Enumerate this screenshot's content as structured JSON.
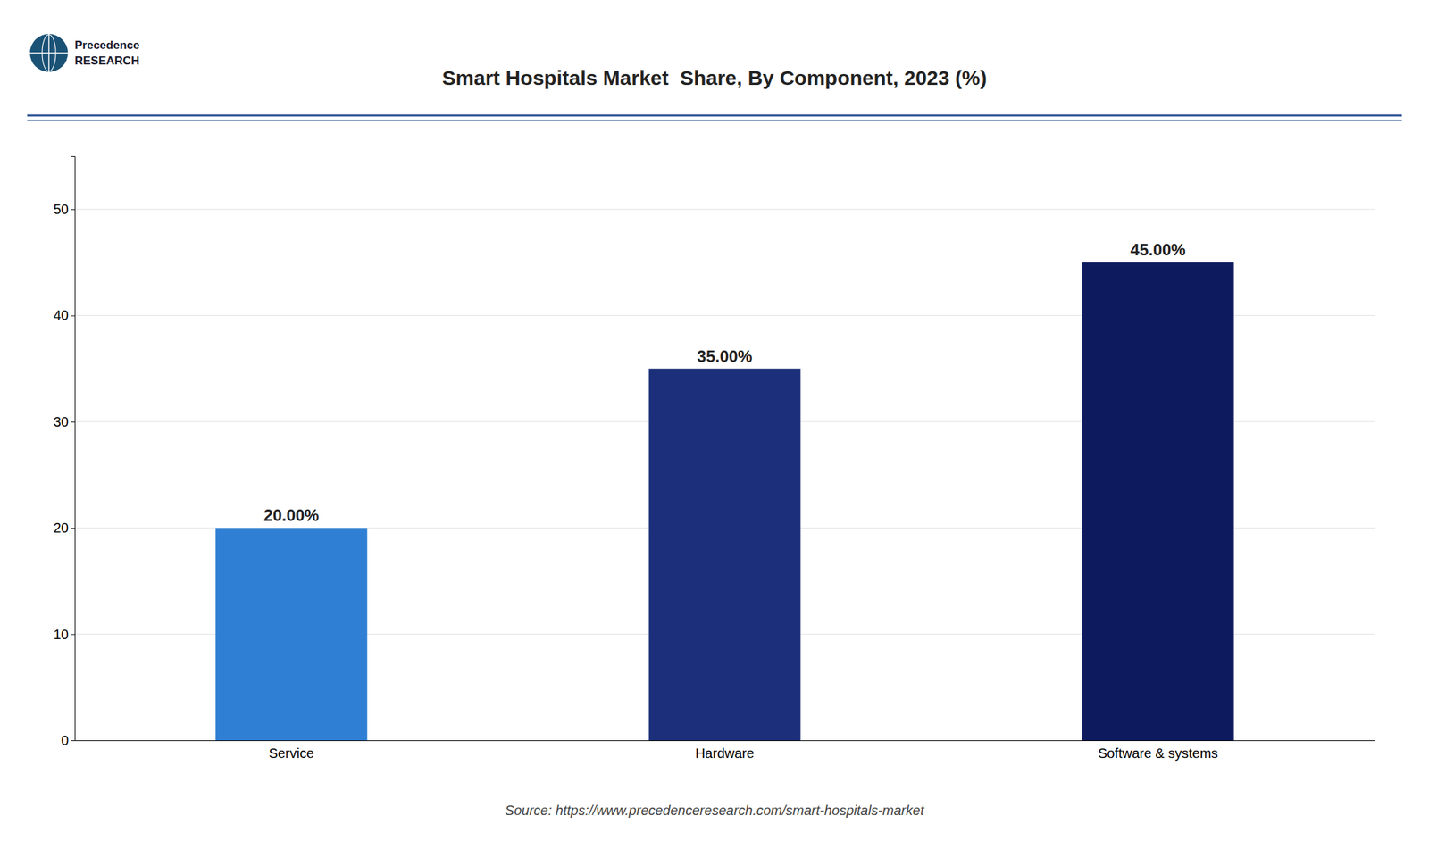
{
  "chart_data": {
    "type": "bar",
    "title": "Smart Hospitals Market  Share, By Component, 2023 (%)",
    "categories": [
      "Service",
      "Hardware",
      "Software & systems"
    ],
    "values": [
      20.0,
      35.0,
      45.0
    ],
    "value_labels": [
      "20.00%",
      "35.00%",
      "45.00%"
    ],
    "data_labels": true,
    "colors": [
      "#2F7FD4",
      "#1B2F7A",
      "#0D1B5E"
    ],
    "ylim": [
      0,
      55
    ],
    "yticks": [
      0,
      10,
      20,
      30,
      40,
      50
    ],
    "grid": true,
    "annotations": [
      "Precedence",
      "RESEARCH",
      "Source: https://www.precedenceresearch.com/smart-hospitals-market"
    ]
  }
}
